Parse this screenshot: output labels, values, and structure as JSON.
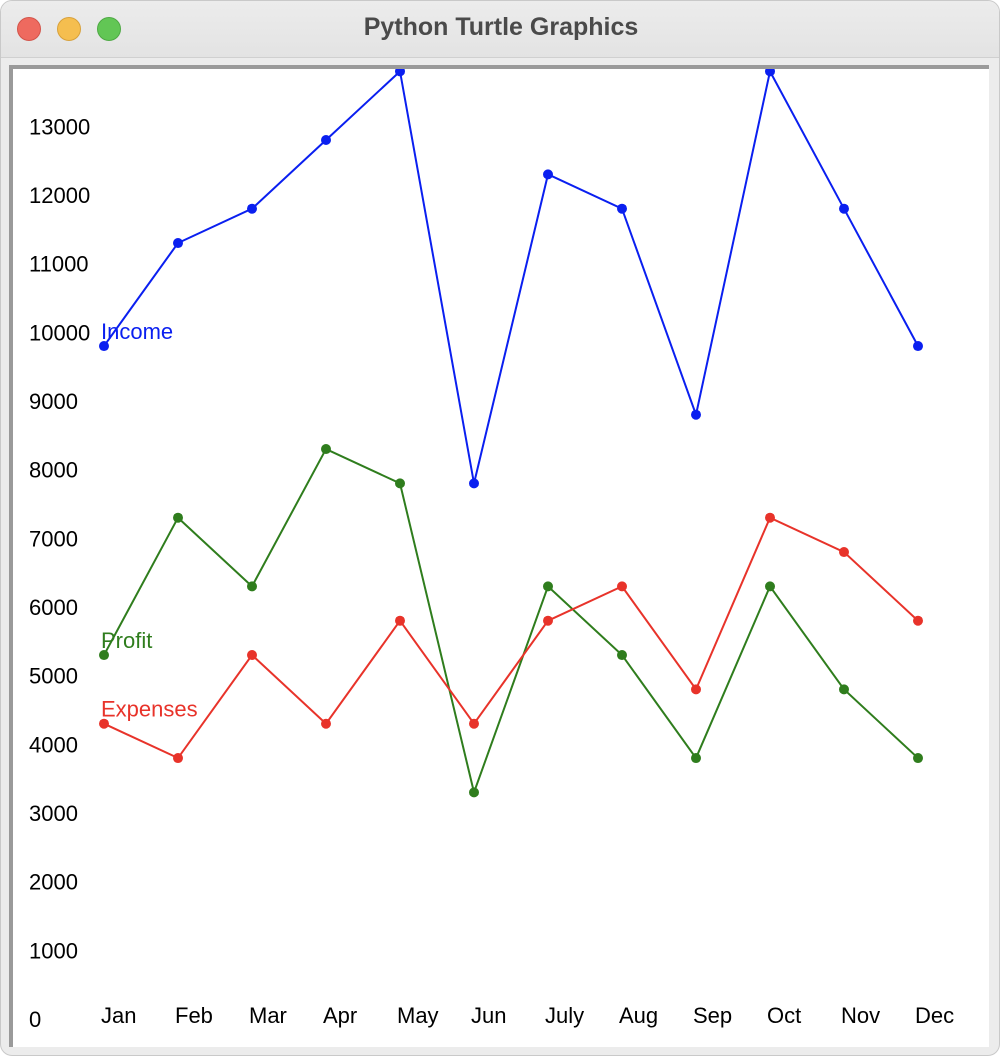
{
  "window": {
    "title": "Python Turtle Graphics"
  },
  "chart_data": {
    "type": "line",
    "title": "",
    "xlabel": "",
    "ylabel": "",
    "categories": [
      "Jan",
      "Feb",
      "Mar",
      "Apr",
      "May",
      "Jun",
      "July",
      "Aug",
      "Sep",
      "Oct",
      "Nov",
      "Dec"
    ],
    "y_ticks": [
      "0",
      "1000",
      "2000",
      "3000",
      "4000",
      "5000",
      "6000",
      "7000",
      "8000",
      "9000",
      "10000",
      "11000",
      "12000",
      "13000"
    ],
    "ylim": [
      0,
      13800
    ],
    "grid": false,
    "series": [
      {
        "name": "Income",
        "color": "#0a1ff0",
        "values": [
          9800,
          11300,
          11800,
          12800,
          13800,
          7800,
          12300,
          11800,
          8800,
          13800,
          11800,
          9800
        ]
      },
      {
        "name": "Profit",
        "color": "#2f7d1d",
        "values": [
          5300,
          7300,
          6300,
          8300,
          7800,
          3300,
          6300,
          5300,
          3800,
          6300,
          4800,
          3800
        ]
      },
      {
        "name": "Expenses",
        "color": "#e8332a",
        "values": [
          4300,
          3800,
          5300,
          4300,
          5800,
          4300,
          5800,
          6300,
          4800,
          7300,
          6800,
          5800
        ]
      }
    ]
  }
}
